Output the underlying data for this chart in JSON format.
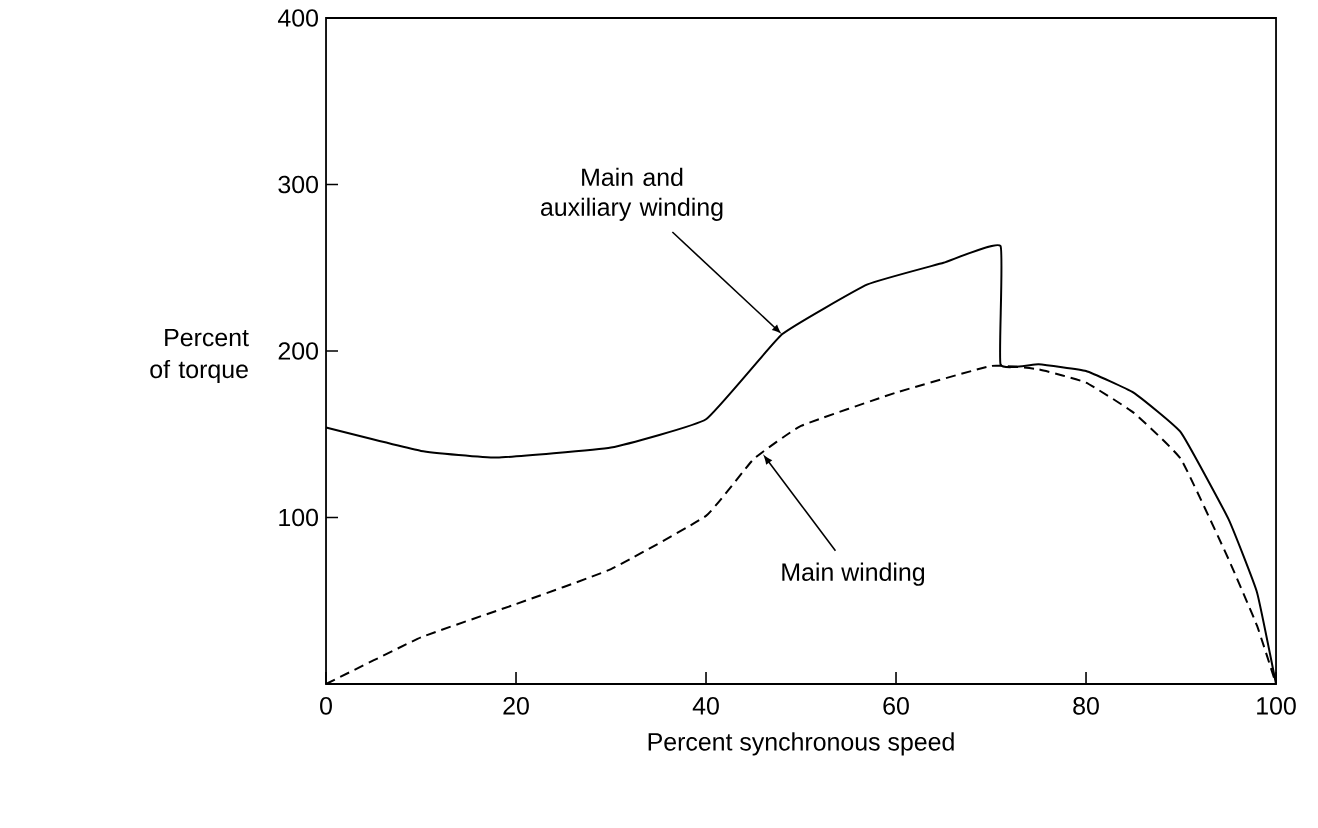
{
  "chart_data": {
    "type": "line",
    "xlabel": "Percent  synchronous speed",
    "ylabel": "Percent of torque",
    "xlim": [
      0,
      100
    ],
    "ylim": [
      0,
      400
    ],
    "xticks": [
      0,
      20,
      40,
      60,
      80,
      100
    ],
    "yticks": [
      100,
      200,
      300,
      400
    ],
    "grid": false,
    "marker": "none",
    "series": [
      {
        "color": "#000000",
        "line_style": "solid",
        "x": [
          0,
          10,
          18,
          30,
          40,
          48,
          57,
          65,
          71,
          71,
          75,
          80,
          85,
          90,
          95,
          98,
          100
        ],
        "values": [
          154,
          140,
          136,
          142,
          159,
          210,
          240,
          253,
          263,
          192,
          192,
          188,
          175,
          151,
          99,
          55,
          0
        ]
      },
      {
        "color": "#000000",
        "line_style": "dashed",
        "x": [
          0,
          10,
          20,
          30,
          40,
          45,
          50,
          60,
          70,
          75,
          80,
          85,
          90,
          95,
          98,
          100
        ],
        "values": [
          0,
          28,
          48,
          69,
          101,
          135,
          155,
          175,
          191,
          189,
          181,
          163,
          135,
          75,
          35,
          0
        ]
      }
    ],
    "annotations": [
      {
        "text": "Main and auxiliary winding",
        "x": 48,
        "y": 210
      },
      {
        "text": "Main winding",
        "x": 46,
        "y": 138
      }
    ]
  }
}
